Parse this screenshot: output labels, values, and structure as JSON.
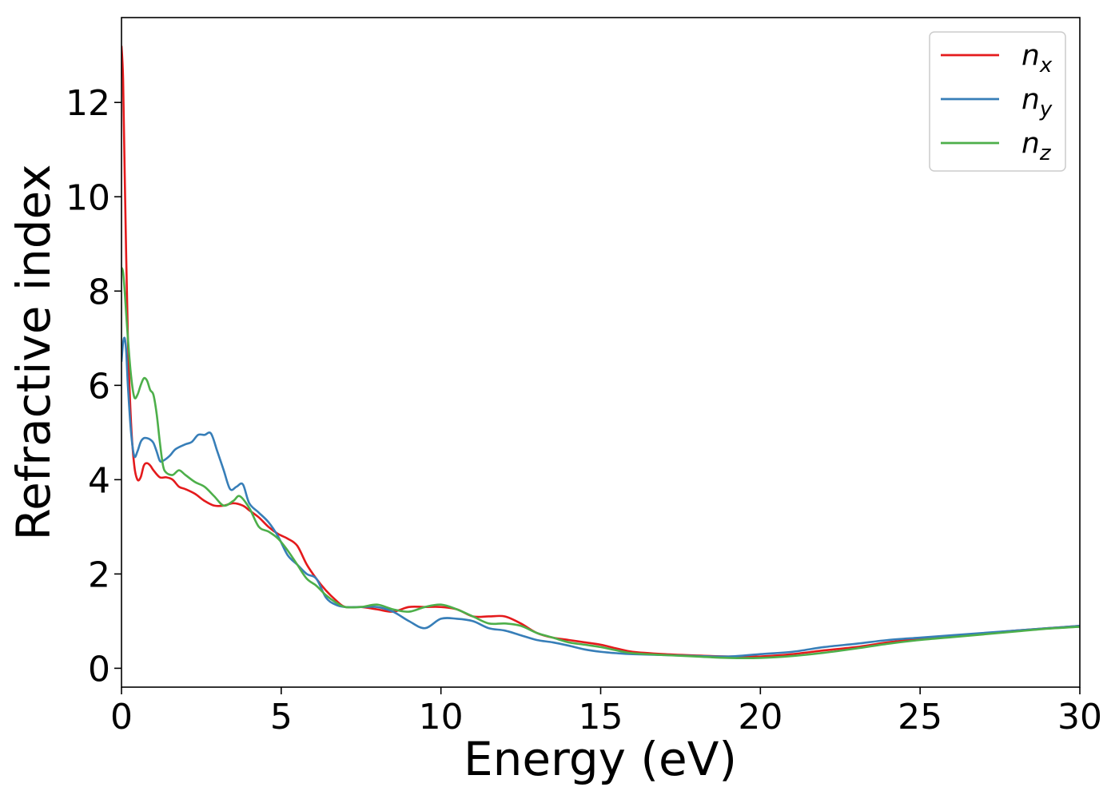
{
  "chart_data": {
    "type": "line",
    "title": "",
    "xlabel": "Energy (eV)",
    "ylabel": "Refractive index",
    "xlim": [
      0,
      30
    ],
    "ylim": [
      -0.4,
      13.8
    ],
    "xticks": [
      0,
      5,
      10,
      15,
      20,
      25,
      30
    ],
    "yticks": [
      0,
      2,
      4,
      6,
      8,
      10,
      12
    ],
    "xtick_labels": [
      "0",
      "5",
      "10",
      "15",
      "20",
      "25",
      "30"
    ],
    "ytick_labels": [
      "0",
      "2",
      "4",
      "6",
      "8",
      "10",
      "12"
    ],
    "grid": false,
    "legend_position": "top-right",
    "series": [
      {
        "name": "n",
        "subscript": "x",
        "color": "#e41a1c",
        "x": [
          0,
          0.05,
          0.1,
          0.2,
          0.3,
          0.4,
          0.5,
          0.6,
          0.7,
          0.8,
          0.9,
          1.0,
          1.2,
          1.4,
          1.6,
          1.8,
          2.0,
          2.3,
          2.6,
          2.9,
          3.2,
          3.5,
          3.8,
          4.0,
          4.3,
          4.6,
          4.9,
          5.2,
          5.5,
          5.8,
          6.1,
          6.4,
          6.7,
          7.0,
          7.5,
          8.0,
          8.5,
          9.0,
          9.5,
          10.0,
          10.5,
          11.0,
          11.5,
          12.0,
          12.5,
          13.0,
          13.5,
          14.0,
          14.5,
          15.0,
          15.5,
          16.0,
          17.0,
          18.0,
          19.0,
          20.0,
          21.0,
          22.0,
          23.0,
          24.0,
          25.0,
          26.0,
          27.0,
          28.0,
          29.0,
          30.0
        ],
        "y": [
          13.2,
          12.5,
          10.5,
          7.0,
          5.2,
          4.3,
          4.0,
          4.05,
          4.3,
          4.35,
          4.3,
          4.2,
          4.05,
          4.05,
          4.0,
          3.85,
          3.8,
          3.7,
          3.55,
          3.45,
          3.45,
          3.5,
          3.45,
          3.35,
          3.2,
          3.0,
          2.85,
          2.75,
          2.6,
          2.2,
          1.9,
          1.65,
          1.45,
          1.3,
          1.3,
          1.25,
          1.2,
          1.3,
          1.3,
          1.3,
          1.25,
          1.1,
          1.1,
          1.1,
          0.95,
          0.75,
          0.65,
          0.6,
          0.55,
          0.5,
          0.42,
          0.35,
          0.3,
          0.27,
          0.25,
          0.25,
          0.3,
          0.38,
          0.45,
          0.55,
          0.62,
          0.68,
          0.74,
          0.8,
          0.85,
          0.9
        ]
      },
      {
        "name": "n",
        "subscript": "y",
        "color": "#377eb8",
        "x": [
          0,
          0.05,
          0.1,
          0.15,
          0.2,
          0.3,
          0.4,
          0.5,
          0.6,
          0.7,
          0.8,
          0.9,
          1.0,
          1.1,
          1.2,
          1.3,
          1.5,
          1.7,
          2.0,
          2.2,
          2.4,
          2.6,
          2.8,
          3.0,
          3.2,
          3.4,
          3.6,
          3.8,
          4.0,
          4.3,
          4.6,
          4.9,
          5.2,
          5.5,
          5.8,
          6.1,
          6.4,
          6.7,
          7.0,
          7.5,
          8.0,
          8.5,
          9.0,
          9.5,
          10.0,
          10.5,
          11.0,
          11.5,
          12.0,
          12.5,
          13.0,
          13.5,
          14.0,
          14.5,
          15.0,
          15.5,
          16.0,
          17.0,
          18.0,
          19.0,
          20.0,
          21.0,
          22.0,
          23.0,
          24.0,
          25.0,
          26.0,
          27.0,
          28.0,
          29.0,
          30.0
        ],
        "y": [
          6.5,
          6.9,
          7.0,
          6.7,
          6.0,
          5.0,
          4.5,
          4.6,
          4.8,
          4.88,
          4.88,
          4.85,
          4.78,
          4.6,
          4.4,
          4.4,
          4.5,
          4.65,
          4.75,
          4.8,
          4.95,
          4.95,
          4.98,
          4.6,
          4.2,
          3.8,
          3.85,
          3.9,
          3.5,
          3.3,
          3.1,
          2.8,
          2.4,
          2.2,
          2.0,
          1.9,
          1.5,
          1.35,
          1.3,
          1.3,
          1.3,
          1.2,
          1.0,
          0.85,
          1.05,
          1.05,
          1.0,
          0.85,
          0.8,
          0.7,
          0.6,
          0.55,
          0.48,
          0.4,
          0.35,
          0.32,
          0.3,
          0.28,
          0.26,
          0.25,
          0.3,
          0.35,
          0.45,
          0.52,
          0.6,
          0.65,
          0.7,
          0.75,
          0.8,
          0.85,
          0.9
        ]
      },
      {
        "name": "n",
        "subscript": "z",
        "color": "#4daf4a",
        "x": [
          0,
          0.05,
          0.1,
          0.2,
          0.3,
          0.4,
          0.5,
          0.6,
          0.7,
          0.8,
          0.9,
          1.0,
          1.1,
          1.2,
          1.3,
          1.4,
          1.6,
          1.8,
          2.0,
          2.3,
          2.6,
          2.9,
          3.2,
          3.5,
          3.7,
          4.0,
          4.3,
          4.6,
          4.9,
          5.2,
          5.5,
          5.8,
          6.1,
          6.4,
          6.7,
          7.0,
          7.5,
          8.0,
          8.5,
          9.0,
          9.5,
          10.0,
          10.5,
          11.0,
          11.5,
          12.0,
          12.5,
          13.0,
          13.5,
          14.0,
          14.5,
          15.0,
          15.5,
          16.0,
          17.0,
          18.0,
          19.0,
          20.0,
          21.0,
          22.0,
          23.0,
          24.0,
          25.0,
          26.0,
          27.0,
          28.0,
          29.0,
          30.0
        ],
        "y": [
          8.5,
          8.4,
          8.0,
          7.0,
          6.2,
          5.75,
          5.8,
          6.0,
          6.15,
          6.1,
          5.9,
          5.8,
          5.4,
          4.8,
          4.3,
          4.15,
          4.1,
          4.2,
          4.1,
          3.95,
          3.85,
          3.65,
          3.45,
          3.55,
          3.65,
          3.4,
          3.0,
          2.9,
          2.75,
          2.5,
          2.2,
          1.9,
          1.75,
          1.55,
          1.4,
          1.3,
          1.3,
          1.35,
          1.25,
          1.2,
          1.3,
          1.35,
          1.25,
          1.1,
          0.95,
          0.95,
          0.9,
          0.75,
          0.65,
          0.55,
          0.5,
          0.45,
          0.38,
          0.32,
          0.28,
          0.25,
          0.22,
          0.22,
          0.26,
          0.33,
          0.42,
          0.52,
          0.6,
          0.66,
          0.72,
          0.78,
          0.84,
          0.88
        ]
      }
    ]
  }
}
